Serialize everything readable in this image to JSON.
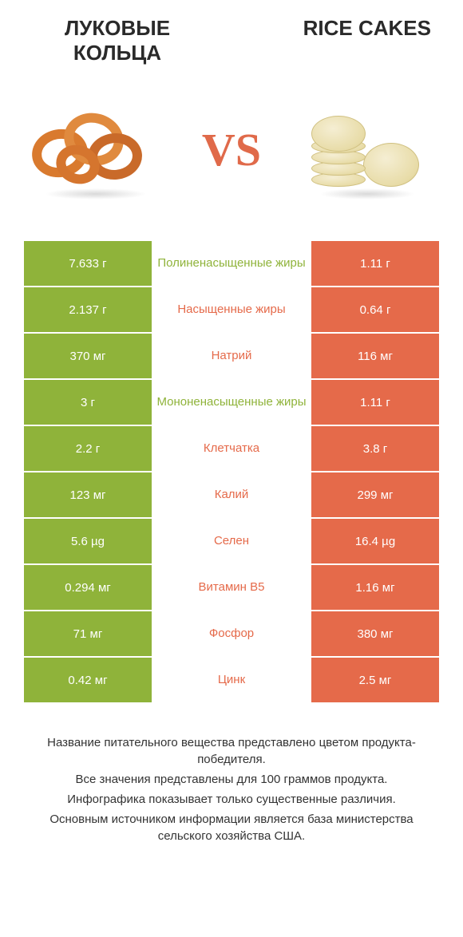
{
  "titles": {
    "left": "ЛУКОВЫЕ КОЛЬЦА",
    "right": "RICE CAKES"
  },
  "vs_label": "VS",
  "colors": {
    "green": "#8fb33a",
    "orange": "#e56a4a",
    "mid_bg": "#ffffff",
    "text_white": "#ffffff"
  },
  "fonts": {
    "title_size": 26,
    "vs_size": 58,
    "cell_size": 15,
    "footer_size": 15
  },
  "rows": [
    {
      "left_val": "7.633 г",
      "label": "Полиненасыщенные жиры",
      "right_val": "1.11 г",
      "left_color": "#8fb33a",
      "right_color": "#e56a4a",
      "label_color": "#8fb33a"
    },
    {
      "left_val": "2.137 г",
      "label": "Насыщенные жиры",
      "right_val": "0.64 г",
      "left_color": "#8fb33a",
      "right_color": "#e56a4a",
      "label_color": "#e56a4a"
    },
    {
      "left_val": "370 мг",
      "label": "Натрий",
      "right_val": "116 мг",
      "left_color": "#8fb33a",
      "right_color": "#e56a4a",
      "label_color": "#e56a4a"
    },
    {
      "left_val": "3 г",
      "label": "Мононенасыщенные жиры",
      "right_val": "1.11 г",
      "left_color": "#8fb33a",
      "right_color": "#e56a4a",
      "label_color": "#8fb33a"
    },
    {
      "left_val": "2.2 г",
      "label": "Клетчатка",
      "right_val": "3.8 г",
      "left_color": "#8fb33a",
      "right_color": "#e56a4a",
      "label_color": "#e56a4a"
    },
    {
      "left_val": "123 мг",
      "label": "Калий",
      "right_val": "299 мг",
      "left_color": "#8fb33a",
      "right_color": "#e56a4a",
      "label_color": "#e56a4a"
    },
    {
      "left_val": "5.6 µg",
      "label": "Селен",
      "right_val": "16.4 µg",
      "left_color": "#8fb33a",
      "right_color": "#e56a4a",
      "label_color": "#e56a4a"
    },
    {
      "left_val": "0.294 мг",
      "label": "Витамин B5",
      "right_val": "1.16 мг",
      "left_color": "#8fb33a",
      "right_color": "#e56a4a",
      "label_color": "#e56a4a"
    },
    {
      "left_val": "71 мг",
      "label": "Фосфор",
      "right_val": "380 мг",
      "left_color": "#8fb33a",
      "right_color": "#e56a4a",
      "label_color": "#e56a4a"
    },
    {
      "left_val": "0.42 мг",
      "label": "Цинк",
      "right_val": "2.5 мг",
      "left_color": "#8fb33a",
      "right_color": "#e56a4a",
      "label_color": "#e56a4a"
    }
  ],
  "footer": [
    "Название питательного вещества представлено цветом продукта-победителя.",
    "Все значения представлены для 100 граммов продукта.",
    "Инфографика показывает только существенные различия.",
    "Основным источником информации является база министерства сельского хозяйства США."
  ]
}
